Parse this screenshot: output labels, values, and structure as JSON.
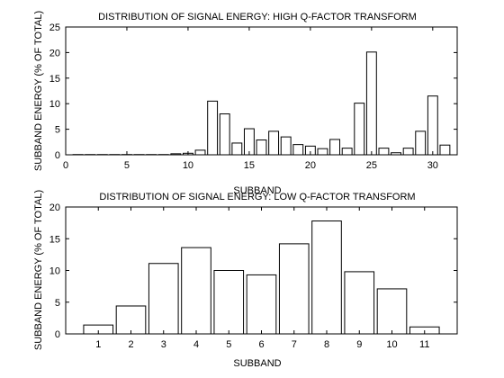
{
  "chart_data": [
    {
      "type": "bar",
      "title": "DISTRIBUTION OF SIGNAL ENERGY: HIGH Q-FACTOR TRANSFORM",
      "xlabel": "SUBBAND",
      "ylabel": "SUBBAND ENERGY (% OF TOTAL)",
      "xlim": [
        0,
        32
      ],
      "ylim": [
        0,
        25
      ],
      "xticks": [
        0,
        5,
        10,
        15,
        20,
        25,
        30
      ],
      "yticks": [
        0,
        5,
        10,
        15,
        20,
        25
      ],
      "categories": [
        1,
        2,
        3,
        4,
        5,
        6,
        7,
        8,
        9,
        10,
        11,
        12,
        13,
        14,
        15,
        16,
        17,
        18,
        19,
        20,
        21,
        22,
        23,
        24,
        25,
        26,
        27,
        28,
        29,
        30,
        31
      ],
      "values": [
        0.05,
        0.05,
        0.05,
        0.05,
        0.05,
        0.05,
        0.05,
        0.05,
        0.2,
        0.3,
        0.9,
        10.5,
        8.0,
        2.3,
        5.1,
        2.9,
        4.6,
        3.5,
        2.0,
        1.7,
        1.2,
        3.0,
        1.3,
        10.1,
        20.1,
        1.3,
        0.4,
        1.3,
        4.6,
        11.5,
        1.9
      ],
      "grid": false
    },
    {
      "type": "bar",
      "title": "DISTRIBUTION OF SIGNAL ENERGY: LOW Q-FACTOR TRANSFORM",
      "xlabel": "SUBBAND",
      "ylabel": "SUBBAND ENERGY (% OF TOTAL)",
      "xlim": [
        0,
        12
      ],
      "ylim": [
        0,
        20
      ],
      "xticks": [
        1,
        2,
        3,
        4,
        5,
        6,
        7,
        8,
        9,
        10,
        11
      ],
      "yticks": [
        0,
        5,
        10,
        15,
        20
      ],
      "categories": [
        1,
        2,
        3,
        4,
        5,
        6,
        7,
        8,
        9,
        10,
        11
      ],
      "values": [
        1.4,
        4.4,
        11.1,
        13.6,
        10.0,
        9.3,
        14.2,
        17.8,
        9.8,
        7.1,
        1.1
      ],
      "grid": false
    }
  ]
}
